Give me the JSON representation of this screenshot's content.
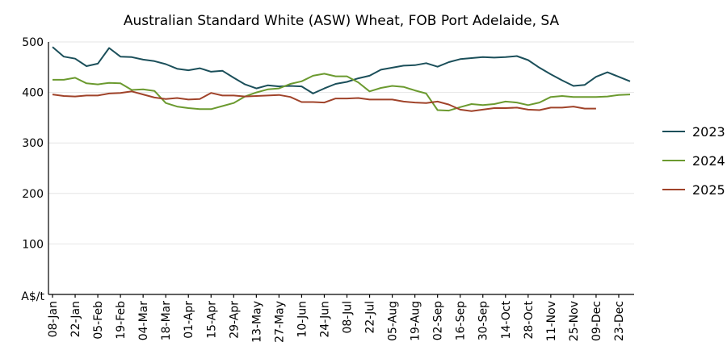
{
  "chart_data": {
    "type": "line",
    "title": "Australian Standard White (ASW) Wheat, FOB Port Adelaide, SA",
    "xlabel": "",
    "ylabel": "A$/t",
    "ylim": [
      0,
      500
    ],
    "yticks": [
      100,
      200,
      300,
      400,
      500
    ],
    "grid": true,
    "legend_position": "right",
    "x_tick_labels": [
      "08-Jan",
      "22-Jan",
      "05-Feb",
      "19-Feb",
      "04-Mar",
      "18-Mar",
      "01-Apr",
      "15-Apr",
      "29-Apr",
      "13-May",
      "27-May",
      "10-Jun",
      "24-Jun",
      "08-Jul",
      "22-Jul",
      "05-Aug",
      "19-Aug",
      "02-Sep",
      "16-Sep",
      "30-Sep",
      "14-Oct",
      "28-Oct",
      "11-Nov",
      "25-Nov",
      "09-Dec",
      "23-Dec"
    ],
    "x_unit": "week",
    "x_range": [
      0,
      51
    ],
    "series": [
      {
        "name": "2023",
        "color": "#1b4f5a",
        "x": [
          0,
          1,
          2,
          3,
          4,
          5,
          6,
          7,
          8,
          9,
          10,
          11,
          12,
          13,
          14,
          15,
          16,
          17,
          18,
          19,
          20,
          21,
          22,
          23,
          24,
          25,
          26,
          27,
          28,
          29,
          30,
          31,
          32,
          33,
          34,
          35,
          36,
          37,
          38,
          39,
          40,
          41,
          42,
          43,
          44,
          45,
          46,
          47,
          48,
          49,
          50,
          51
        ],
        "values": [
          490,
          471,
          467,
          452,
          457,
          488,
          471,
          470,
          465,
          462,
          456,
          447,
          444,
          448,
          441,
          443,
          429,
          416,
          408,
          414,
          412,
          413,
          412,
          398,
          408,
          417,
          421,
          428,
          433,
          445,
          449,
          453,
          454,
          458,
          451,
          460,
          466,
          468,
          470,
          469,
          470,
          472,
          464,
          449,
          436,
          424,
          413,
          415,
          431,
          440,
          431,
          422
        ]
      },
      {
        "name": "2024",
        "color": "#6b9a2f",
        "x": [
          0,
          1,
          2,
          3,
          4,
          5,
          6,
          7,
          8,
          9,
          10,
          11,
          12,
          13,
          14,
          15,
          16,
          17,
          18,
          19,
          20,
          21,
          22,
          23,
          24,
          25,
          26,
          27,
          28,
          29,
          30,
          31,
          32,
          33,
          34,
          35,
          36,
          37,
          38,
          39,
          40,
          41,
          42,
          43,
          44,
          45,
          46,
          47,
          48,
          49,
          50,
          51
        ],
        "values": [
          425,
          425,
          429,
          418,
          416,
          419,
          418,
          405,
          406,
          403,
          379,
          372,
          369,
          367,
          367,
          373,
          379,
          392,
          400,
          406,
          408,
          417,
          422,
          433,
          437,
          432,
          432,
          420,
          402,
          409,
          413,
          411,
          404,
          398,
          365,
          364,
          371,
          377,
          375,
          377,
          382,
          380,
          375,
          380,
          391,
          393,
          391,
          391,
          391,
          392,
          395,
          396
        ]
      },
      {
        "name": "2025",
        "color": "#a0432a",
        "x": [
          0,
          1,
          2,
          3,
          4,
          5,
          6,
          7,
          8,
          9,
          10,
          11,
          12,
          13,
          14,
          15,
          16,
          17,
          18,
          19,
          20,
          21,
          22,
          23,
          24,
          25,
          26,
          27,
          28,
          29,
          30,
          31,
          32,
          33,
          34,
          35,
          36,
          37,
          38,
          39,
          40,
          41,
          42,
          43,
          44,
          45,
          46,
          47,
          48
        ],
        "values": [
          396,
          393,
          392,
          394,
          394,
          398,
          399,
          402,
          396,
          390,
          387,
          389,
          386,
          387,
          399,
          394,
          394,
          392,
          393,
          394,
          395,
          391,
          381,
          381,
          380,
          388,
          388,
          389,
          386,
          386,
          386,
          382,
          380,
          379,
          382,
          376,
          366,
          363,
          366,
          369,
          369,
          370,
          366,
          365,
          370,
          370,
          372,
          368,
          368
        ]
      }
    ]
  }
}
